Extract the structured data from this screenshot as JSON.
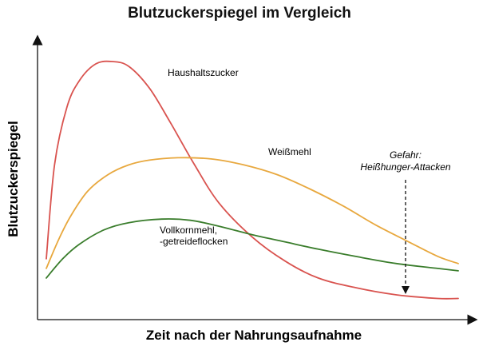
{
  "chart_data": {
    "type": "line",
    "title": "Blutzuckerspiegel im Vergleich",
    "xlabel": "Zeit nach der Nahrungsaufnahme",
    "ylabel": "Blutzuckerspiegel",
    "grid": false,
    "legend": "none",
    "series": [
      {
        "name": "Haushaltszucker",
        "color": "#d9534f",
        "x": [
          0,
          2,
          5,
          8,
          12,
          16,
          20,
          25,
          30,
          36,
          42,
          50,
          58,
          66,
          75,
          85,
          95,
          100
        ],
        "y": [
          18,
          57,
          81,
          92,
          99,
          100,
          98,
          89,
          75,
          57,
          41,
          27,
          17,
          10,
          6,
          3,
          1.5,
          1.5
        ]
      },
      {
        "name": "Weißmehl",
        "color": "#e8a83e",
        "x": [
          0,
          3,
          6,
          10,
          15,
          20,
          25,
          32,
          40,
          48,
          56,
          64,
          72,
          80,
          88,
          95,
          100
        ],
        "y": [
          14,
          26,
          36,
          46,
          53,
          57,
          59,
          60,
          59.5,
          57,
          53,
          47,
          40,
          32,
          25,
          19,
          16
        ]
      },
      {
        "name": "Vollkornmehl, -getreideflocken",
        "color": "#3a7d2c",
        "x": [
          0,
          4,
          8,
          14,
          20,
          28,
          35,
          42,
          50,
          58,
          66,
          75,
          85,
          95,
          100
        ],
        "y": [
          10,
          18,
          24,
          30,
          33,
          34.5,
          34,
          31.5,
          28,
          25,
          22,
          19,
          16,
          14,
          13
        ]
      }
    ],
    "annotations": [
      {
        "text": "Gefahr:",
        "style": "italic"
      },
      {
        "text": "Heißhunger-Attacken",
        "style": "italic"
      }
    ]
  },
  "labels": {
    "haushaltszucker": "Haushaltszucker",
    "weissmehl": "Weißmehl",
    "vollkorn_line1": "Vollkornmehl,",
    "vollkorn_line2": "-getreideflocken",
    "gefahr_line1": "Gefahr:",
    "gefahr_line2": "Heißhunger-Attacken"
  }
}
